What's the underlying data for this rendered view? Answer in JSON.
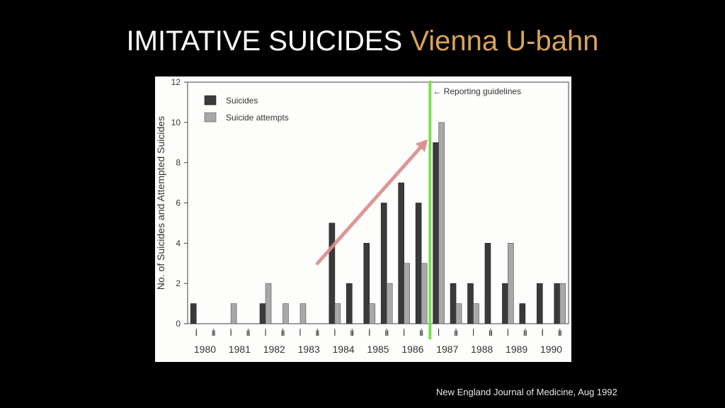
{
  "slide": {
    "title_main": "IMITATIVE SUICIDES",
    "title_accent": "Vienna U-bahn",
    "caption": "New England Journal of Medicine, Aug 1992"
  },
  "colors": {
    "title_accent": "#d9a35a",
    "suicides_bar": "#3a3a3a",
    "attempts_bar": "#a8a8a8",
    "guideline_line": "#7ed957",
    "trend_arrow": "#d98d8d"
  },
  "chart_data": {
    "type": "bar",
    "ylabel": "No. of Suicides and Attempted Suicides",
    "ylim": [
      0,
      12
    ],
    "yticks": [
      "0",
      "2",
      "4",
      "6",
      "8",
      "10",
      "12"
    ],
    "years": [
      "1980",
      "1981",
      "1982",
      "1983",
      "1984",
      "1985",
      "1986",
      "1987",
      "1988",
      "1989",
      "1990"
    ],
    "half_labels": [
      "I",
      "II"
    ],
    "categories": [
      "1980 I",
      "1980 II",
      "1981 I",
      "1981 II",
      "1982 I",
      "1982 II",
      "1983 I",
      "1983 II",
      "1984 I",
      "1984 II",
      "1985 I",
      "1985 II",
      "1986 I",
      "1986 II",
      "1987 I",
      "1987 II",
      "1988 I",
      "1988 II",
      "1989 I",
      "1989 II",
      "1990 I",
      "1990 II"
    ],
    "series": [
      {
        "name": "Suicides",
        "values": [
          1,
          0,
          0,
          0,
          1,
          0,
          0,
          0,
          5,
          2,
          4,
          6,
          7,
          6,
          9,
          2,
          2,
          4,
          2,
          1,
          2,
          2
        ]
      },
      {
        "name": "Suicide attempts",
        "values": [
          0,
          0,
          1,
          0,
          2,
          1,
          1,
          0,
          1,
          0,
          1,
          2,
          3,
          3,
          10,
          1,
          1,
          0,
          4,
          0,
          0,
          2
        ]
      }
    ],
    "legend_placement": "top-left",
    "annotation": {
      "text": "← Reporting guidelines",
      "between_categories": [
        "1986 II",
        "1987 I"
      ]
    },
    "trend_arrow": {
      "from_value": 3,
      "to_value": 9
    }
  }
}
